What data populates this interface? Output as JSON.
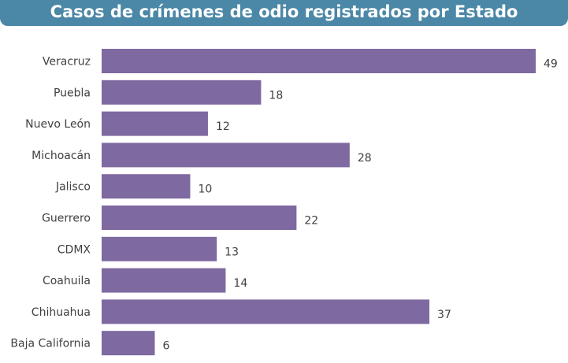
{
  "chart_data": {
    "type": "bar",
    "orientation": "horizontal",
    "title": "Casos de crímenes de odio registrados por Estado",
    "categories": [
      "Veracruz",
      "Puebla",
      "Nuevo León",
      "Michoacán",
      "Jalisco",
      "Guerrero",
      "CDMX",
      "Coahuila",
      "Chihuahua",
      "Baja California"
    ],
    "values": [
      49,
      18,
      12,
      28,
      10,
      22,
      13,
      14,
      37,
      6
    ],
    "xlim": [
      0,
      49
    ],
    "grid": false,
    "data_labels": true,
    "colors": {
      "bar": "#7e69a0",
      "header": "#4b87a6",
      "label": "#3f3f3f"
    }
  }
}
